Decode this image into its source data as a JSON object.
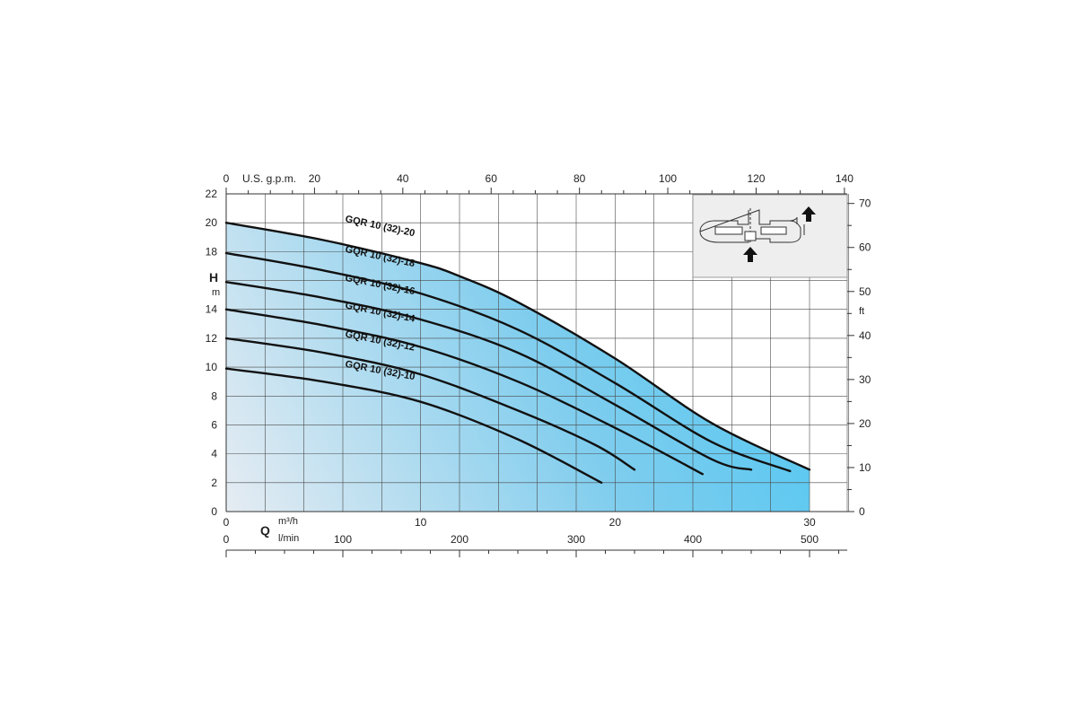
{
  "chart_data": {
    "type": "line",
    "title": "",
    "x_primary": {
      "label": "Q",
      "unit": "m³/h",
      "min": 0,
      "max": 32,
      "ticks": [
        0,
        10,
        20,
        30
      ]
    },
    "x_secondary_lmin": {
      "unit": "l/min",
      "ticks": [
        0,
        100,
        200,
        300,
        400,
        500
      ]
    },
    "x_top_usgpm": {
      "unit": "U.S. g.p.m.",
      "ticks": [
        0,
        20,
        40,
        60,
        80,
        100,
        120,
        140
      ]
    },
    "y_primary": {
      "label": "H",
      "unit": "m",
      "min": 0,
      "max": 22,
      "ticks": [
        0,
        2,
        4,
        6,
        8,
        10,
        12,
        14,
        18,
        20,
        22
      ]
    },
    "y_secondary_ft": {
      "unit": "ft",
      "ticks": [
        0,
        10,
        20,
        30,
        40,
        50,
        60,
        70
      ]
    },
    "grid": true,
    "series": [
      {
        "name": "GQR 10 (32)-20",
        "x": [
          0,
          5,
          10,
          12,
          15,
          20,
          25,
          30
        ],
        "y": [
          20.0,
          18.8,
          17.2,
          16.3,
          14.5,
          10.6,
          6.1,
          2.9
        ]
      },
      {
        "name": "GQR 10 (32)-18",
        "x": [
          0,
          5,
          10,
          15,
          20,
          25,
          29
        ],
        "y": [
          17.9,
          16.7,
          15.1,
          12.6,
          8.9,
          4.8,
          2.8
        ]
      },
      {
        "name": "GQR 10 (32)-16",
        "x": [
          0,
          5,
          10,
          15,
          20,
          25,
          27
        ],
        "y": [
          15.9,
          14.8,
          13.3,
          11.0,
          7.4,
          3.6,
          2.9
        ]
      },
      {
        "name": "GQR 10 (32)-14",
        "x": [
          0,
          5,
          10,
          15,
          20,
          24.5
        ],
        "y": [
          14.0,
          12.9,
          11.4,
          9.0,
          5.8,
          2.6
        ]
      },
      {
        "name": "GQR 10 (32)-12",
        "x": [
          0,
          5,
          10,
          15,
          19,
          21
        ],
        "y": [
          12.0,
          11.0,
          9.5,
          7.0,
          4.6,
          2.9
        ]
      },
      {
        "name": "GQR 10 (32)-10",
        "x": [
          0,
          5,
          10,
          15,
          19.3
        ],
        "y": [
          9.9,
          9.0,
          7.6,
          5.0,
          2.0
        ]
      }
    ]
  }
}
